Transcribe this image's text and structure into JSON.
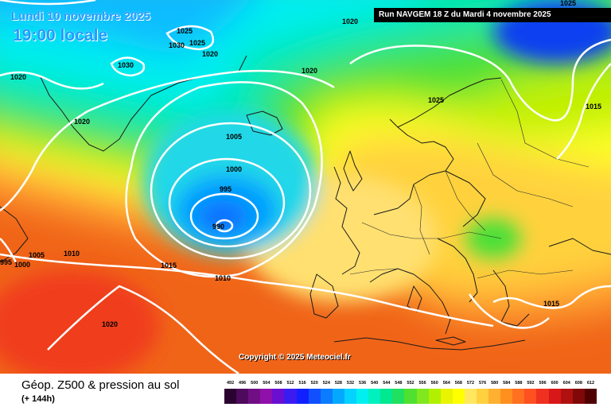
{
  "header": {
    "date": "Lundi 10 novembre 2025",
    "time": "19:00 locale",
    "run": "Run NAVGEM 18 Z du Mardi 4 novembre 2025"
  },
  "map": {
    "copyright": "Copyright © 2025 Meteociel.fr",
    "isobar_labels": [
      "1025",
      "1030",
      "1025",
      "1020",
      "1030",
      "1020",
      "1020",
      "1020",
      "1025",
      "1015",
      "1025",
      "1020",
      "1005",
      "1000",
      "995",
      "990",
      "995",
      "1000",
      "1005",
      "1010",
      "1015",
      "1010",
      "1020",
      "1015"
    ]
  },
  "legend": {
    "title": "Géop. Z500 & pression au sol",
    "lead": "(+ 144h)",
    "scale_values": [
      "492",
      "496",
      "500",
      "504",
      "508",
      "512",
      "516",
      "520",
      "524",
      "528",
      "532",
      "536",
      "540",
      "544",
      "548",
      "552",
      "556",
      "560",
      "564",
      "568",
      "572",
      "576",
      "580",
      "584",
      "588",
      "592",
      "596",
      "600",
      "604",
      "608",
      "612"
    ],
    "scale_colors": [
      "#2b0330",
      "#4e0a5c",
      "#700f84",
      "#9010ac",
      "#6a0fd0",
      "#3b1cf0",
      "#1020ff",
      "#1050ff",
      "#0b7cff",
      "#05a8ff",
      "#04d2ff",
      "#00f0f0",
      "#00f0c0",
      "#00e890",
      "#20e060",
      "#50e030",
      "#80e820",
      "#b0f000",
      "#e8f400",
      "#ffff00",
      "#ffe860",
      "#ffd040",
      "#ffb030",
      "#ff9020",
      "#ff7020",
      "#ff5020",
      "#f03020",
      "#d81818",
      "#b01010",
      "#800808",
      "#500000"
    ]
  },
  "colors": {
    "accent_text": "#1e9cff",
    "isobar": "#ffffff"
  }
}
